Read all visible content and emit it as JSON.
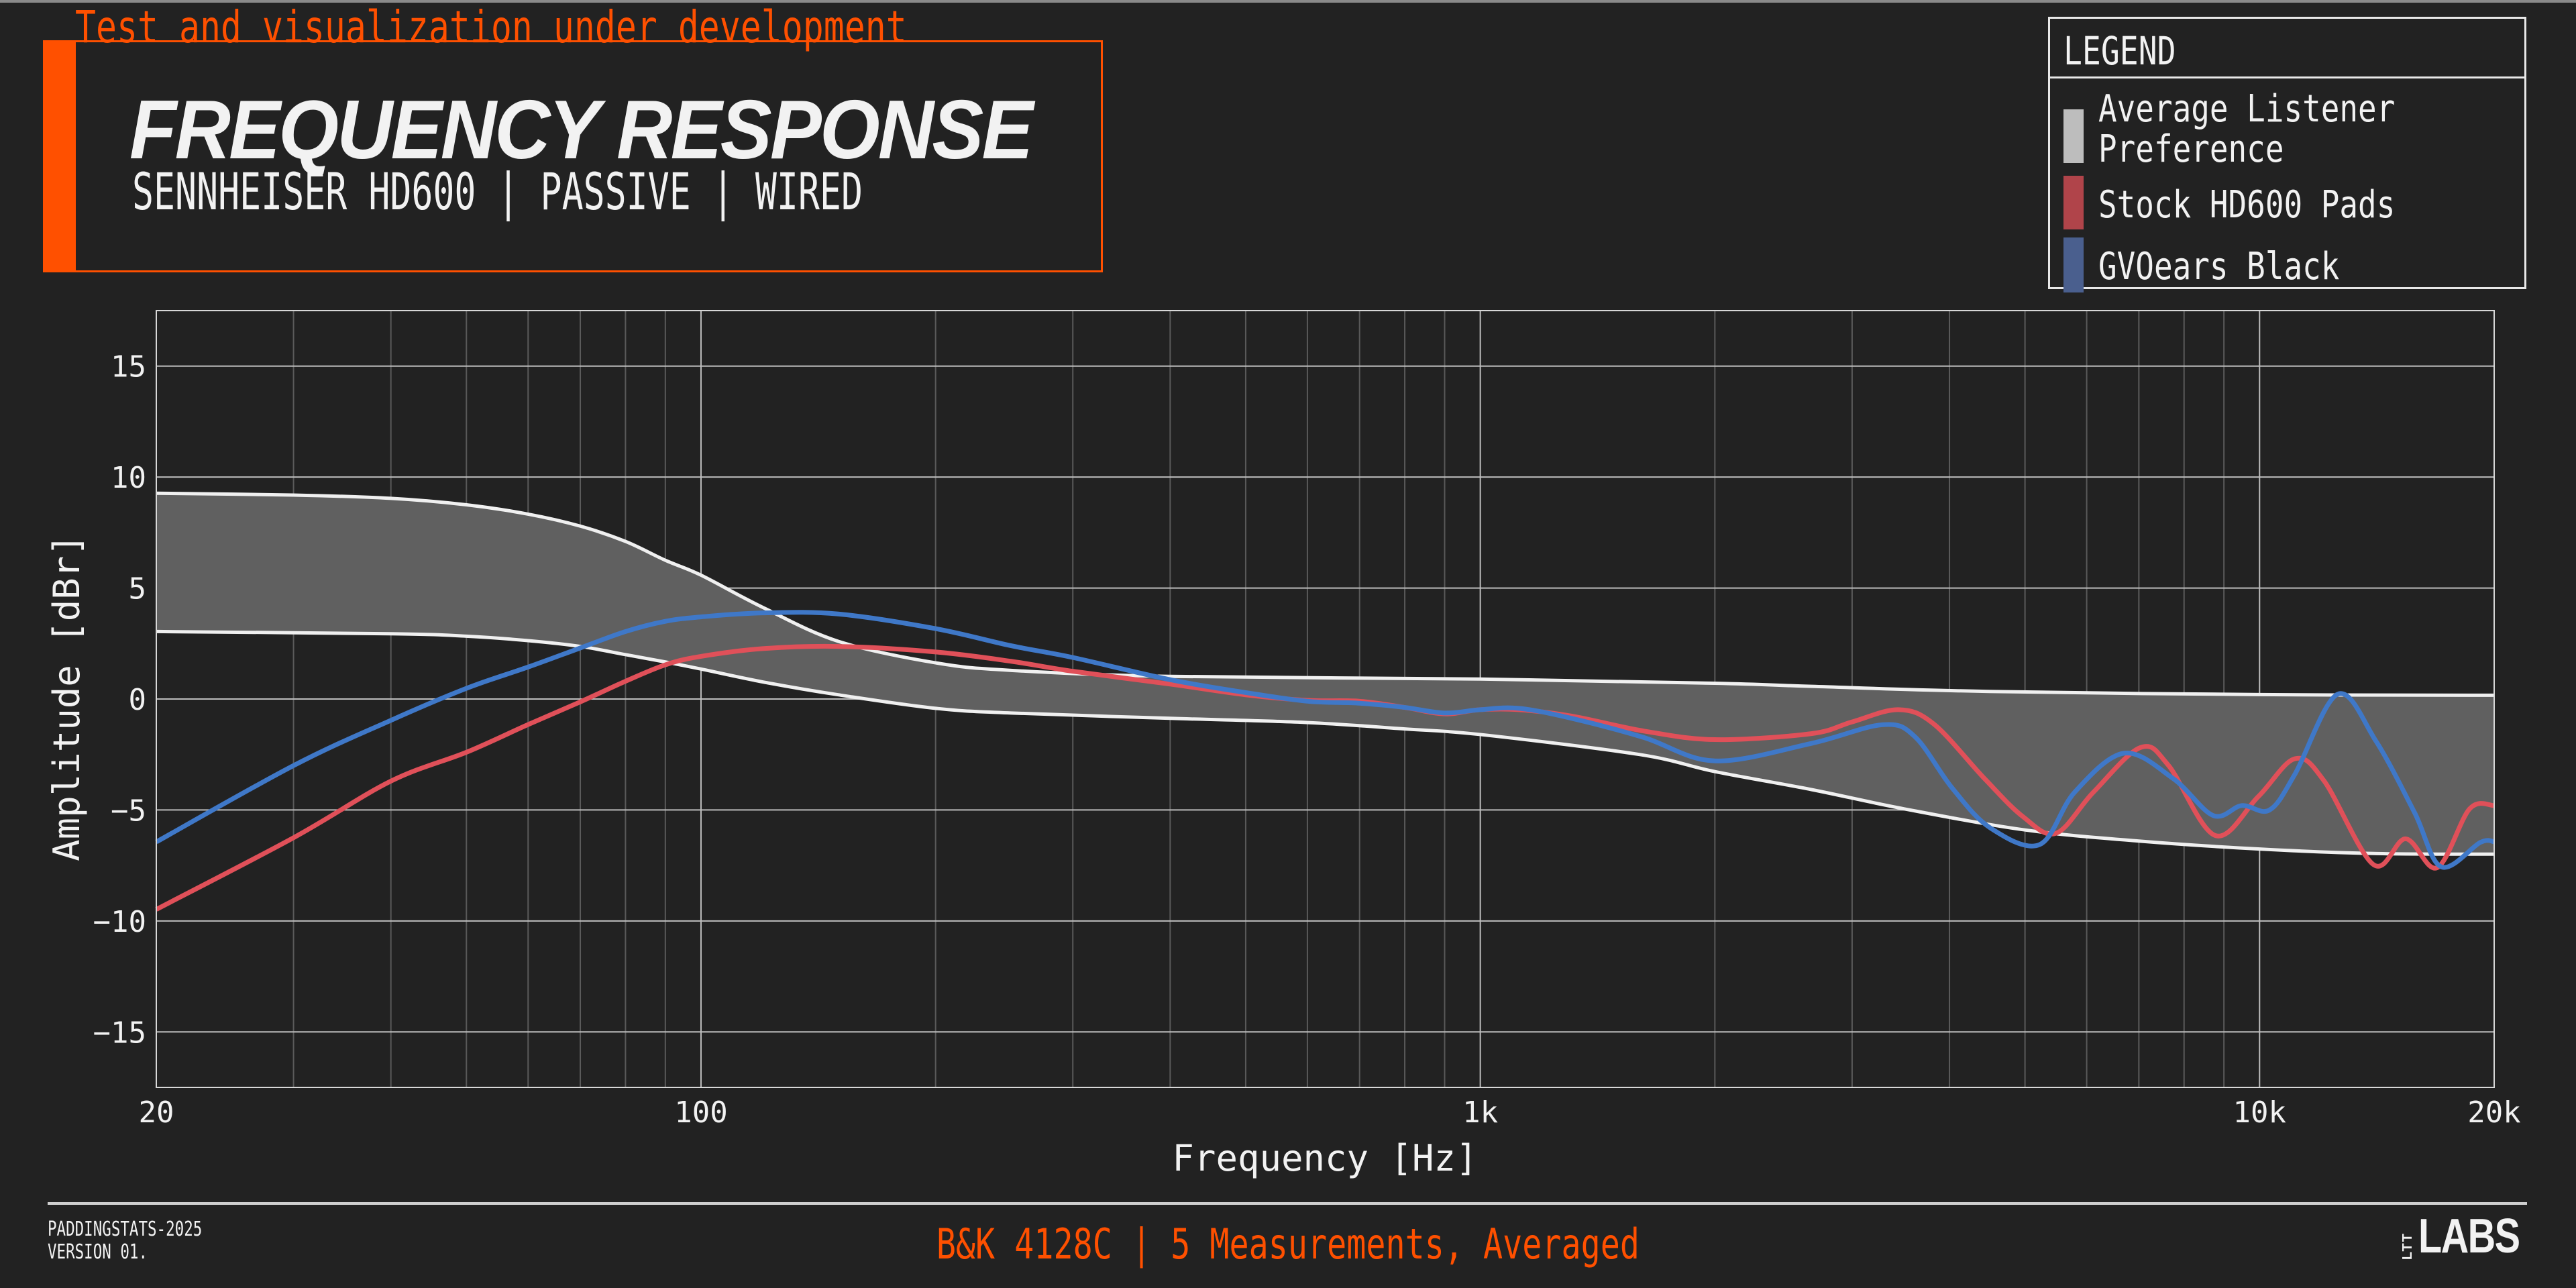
{
  "banner": "Test and visualization under development",
  "header": {
    "title": "FREQUENCY RESPONSE",
    "subtitle": "SENNHEISER HD600 | PASSIVE | WIRED"
  },
  "legend": {
    "title": "LEGEND",
    "items": [
      {
        "label_line1": "Average Listener",
        "label_line2": "Preference",
        "color": "#bdbdbd"
      },
      {
        "label": "Stock HD600 Pads",
        "color": "#b0444a"
      },
      {
        "label": "GVOears Black",
        "color": "#4a5f8e"
      }
    ]
  },
  "footer": {
    "left_line1": "PADDINGSTATS-2025",
    "left_line2": "VERSION 01.",
    "center": "B&K 4128C | 5 Measurements, Averaged",
    "logo_small": "LTT",
    "logo": "LABS"
  },
  "colors": {
    "accent": "#ff5000",
    "background": "#222222",
    "band_fill": "#606060",
    "band_edge": "#f0f0f0"
  },
  "chart_data": {
    "type": "line",
    "xlabel": "Frequency [Hz]",
    "ylabel": "Amplitude [dBr]",
    "xscale": "log",
    "xlim": [
      20,
      20000
    ],
    "ylim": [
      -17.5,
      17.5
    ],
    "xticks": [
      20,
      100,
      1000,
      10000,
      20000
    ],
    "xtick_labels": [
      "20",
      "100",
      "1k",
      "10k",
      "20k"
    ],
    "yticks": [
      -15,
      -10,
      -5,
      0,
      5,
      10,
      15
    ],
    "ytick_labels": [
      "−15",
      "−10",
      "−5",
      "0",
      "5",
      "10",
      "15"
    ],
    "grid": true,
    "legend_position": "top-right",
    "band": {
      "name": "Average Listener Preference",
      "upper": [
        [
          20,
          9.27
        ],
        [
          30,
          9.19
        ],
        [
          40,
          9.04
        ],
        [
          50,
          8.75
        ],
        [
          60,
          8.33
        ],
        [
          70,
          7.79
        ],
        [
          80,
          7.1
        ],
        [
          90,
          6.25
        ],
        [
          100,
          5.58
        ],
        [
          120,
          4.13
        ],
        [
          150,
          2.6
        ],
        [
          200,
          1.63
        ],
        [
          250,
          1.29
        ],
        [
          400,
          1.02
        ],
        [
          1000,
          0.9
        ],
        [
          2000,
          0.71
        ],
        [
          2660,
          0.57
        ],
        [
          4500,
          0.34
        ],
        [
          10000,
          0.2
        ],
        [
          20000,
          0.17
        ]
      ],
      "lower": [
        [
          20,
          3.04
        ],
        [
          40,
          2.94
        ],
        [
          50,
          2.83
        ],
        [
          60,
          2.63
        ],
        [
          70,
          2.37
        ],
        [
          80,
          2.0
        ],
        [
          90,
          1.67
        ],
        [
          100,
          1.35
        ],
        [
          120,
          0.77
        ],
        [
          150,
          0.19
        ],
        [
          200,
          -0.42
        ],
        [
          250,
          -0.63
        ],
        [
          400,
          -0.87
        ],
        [
          600,
          -1.06
        ],
        [
          800,
          -1.35
        ],
        [
          1000,
          -1.6
        ],
        [
          1600,
          -2.5
        ],
        [
          2000,
          -3.27
        ],
        [
          2660,
          -4.08
        ],
        [
          3500,
          -4.95
        ],
        [
          5000,
          -5.9
        ],
        [
          7000,
          -6.4
        ],
        [
          10000,
          -6.76
        ],
        [
          14000,
          -6.96
        ],
        [
          20000,
          -6.99
        ]
      ]
    },
    "series": [
      {
        "name": "Stock HD600 Pads",
        "color": "#e05059",
        "points": [
          [
            20,
            -9.48
          ],
          [
            30,
            -6.25
          ],
          [
            40,
            -3.7
          ],
          [
            50,
            -2.4
          ],
          [
            60,
            -1.15
          ],
          [
            70,
            -0.13
          ],
          [
            80,
            0.8
          ],
          [
            90,
            1.54
          ],
          [
            100,
            1.92
          ],
          [
            120,
            2.27
          ],
          [
            150,
            2.37
          ],
          [
            200,
            2.12
          ],
          [
            250,
            1.7
          ],
          [
            300,
            1.25
          ],
          [
            400,
            0.67
          ],
          [
            500,
            0.19
          ],
          [
            600,
            -0.06
          ],
          [
            700,
            -0.1
          ],
          [
            800,
            -0.38
          ],
          [
            900,
            -0.67
          ],
          [
            1000,
            -0.48
          ],
          [
            1120,
            -0.48
          ],
          [
            1310,
            -0.77
          ],
          [
            1620,
            -1.44
          ],
          [
            2000,
            -1.83
          ],
          [
            2660,
            -1.56
          ],
          [
            3000,
            -1.03
          ],
          [
            3440,
            -0.48
          ],
          [
            3820,
            -1.13
          ],
          [
            4440,
            -3.6
          ],
          [
            4970,
            -5.3
          ],
          [
            5480,
            -6.05
          ],
          [
            6120,
            -4.2
          ],
          [
            7030,
            -2.19
          ],
          [
            7640,
            -2.99
          ],
          [
            8770,
            -6.15
          ],
          [
            9960,
            -4.4
          ],
          [
            11100,
            -2.69
          ],
          [
            12100,
            -3.69
          ],
          [
            14000,
            -7.46
          ],
          [
            15400,
            -6.3
          ],
          [
            16900,
            -7.6
          ],
          [
            18600,
            -4.95
          ],
          [
            20000,
            -4.8
          ]
        ]
      },
      {
        "name": "GVOears Black",
        "color": "#3f78c8",
        "points": [
          [
            20,
            -6.44
          ],
          [
            30,
            -3.0
          ],
          [
            40,
            -0.96
          ],
          [
            50,
            0.48
          ],
          [
            60,
            1.44
          ],
          [
            70,
            2.3
          ],
          [
            80,
            3.04
          ],
          [
            90,
            3.5
          ],
          [
            100,
            3.7
          ],
          [
            120,
            3.88
          ],
          [
            150,
            3.83
          ],
          [
            200,
            3.17
          ],
          [
            250,
            2.4
          ],
          [
            300,
            1.87
          ],
          [
            400,
            0.87
          ],
          [
            500,
            0.29
          ],
          [
            600,
            -0.1
          ],
          [
            700,
            -0.19
          ],
          [
            800,
            -0.38
          ],
          [
            900,
            -0.63
          ],
          [
            1000,
            -0.48
          ],
          [
            1120,
            -0.42
          ],
          [
            1310,
            -0.87
          ],
          [
            1620,
            -1.73
          ],
          [
            2000,
            -2.79
          ],
          [
            2660,
            -2.0
          ],
          [
            3280,
            -1.16
          ],
          [
            3610,
            -1.69
          ],
          [
            4030,
            -4.0
          ],
          [
            4510,
            -5.8
          ],
          [
            5220,
            -6.56
          ],
          [
            5790,
            -4.2
          ],
          [
            6700,
            -2.44
          ],
          [
            7750,
            -3.59
          ],
          [
            8720,
            -5.25
          ],
          [
            9490,
            -4.8
          ],
          [
            10300,
            -5.0
          ],
          [
            11100,
            -3.39
          ],
          [
            12600,
            0.22
          ],
          [
            14100,
            -1.89
          ],
          [
            15800,
            -5.1
          ],
          [
            17100,
            -7.56
          ],
          [
            19200,
            -6.46
          ],
          [
            20000,
            -6.43
          ]
        ]
      }
    ]
  }
}
